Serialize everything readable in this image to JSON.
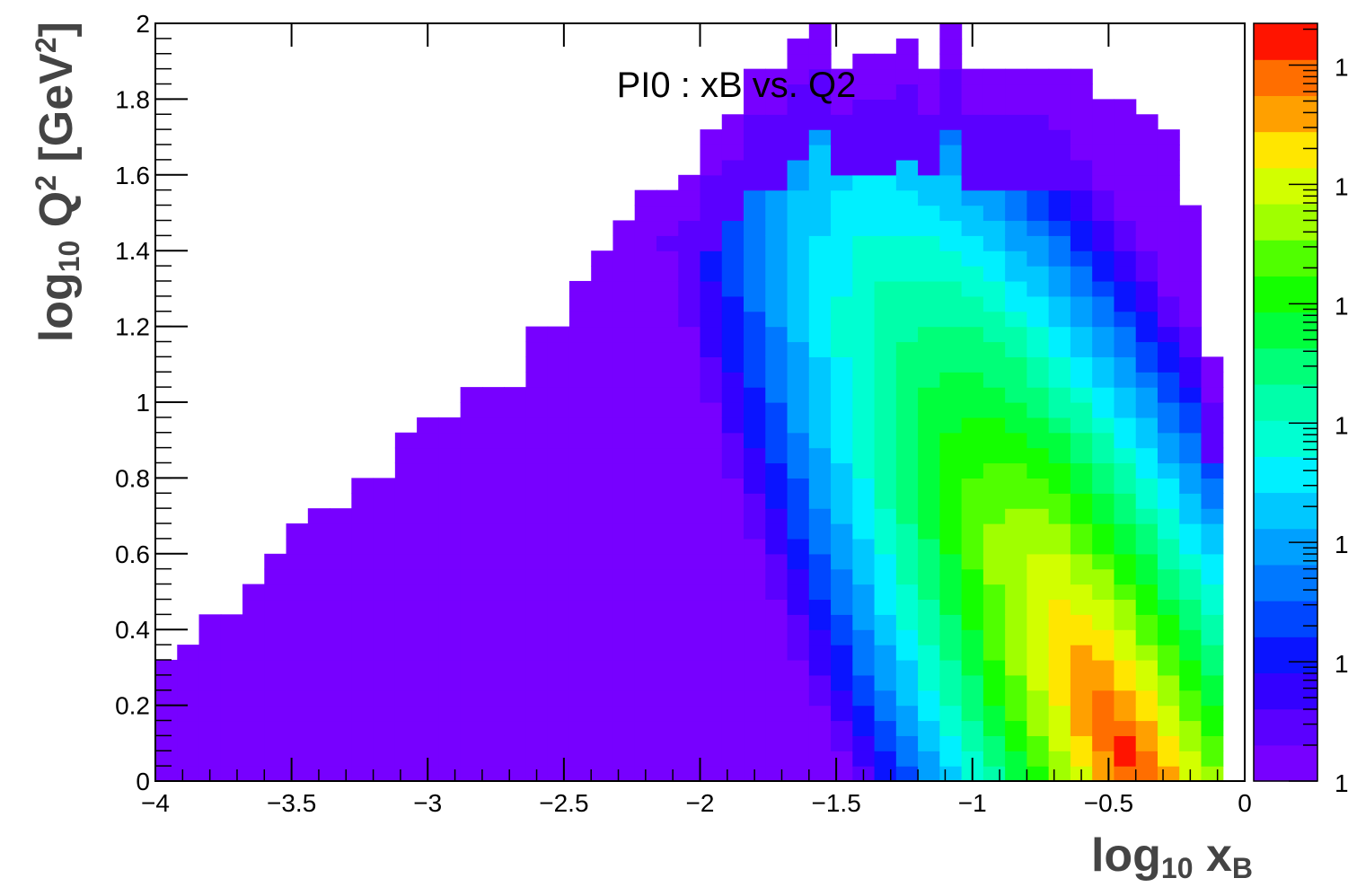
{
  "chart_data": {
    "type": "heatmap",
    "title": "PI0 : xB vs. Q2",
    "xlabel": "log10 xB",
    "ylabel": "log10 Q² [GeV²]",
    "xlabel_parts": {
      "base": "log",
      "sub": "10",
      "var": " x",
      "var_sub": "B"
    },
    "ylabel_parts": {
      "base": "log",
      "sub": "10",
      "var": " Q",
      "sup": "2",
      "unit_open": " [GeV",
      "unit_sup": "2",
      "unit_close": "]"
    },
    "xlim": [
      -4,
      0
    ],
    "ylim": [
      0,
      2
    ],
    "x_ticks": [
      -4,
      -3.5,
      -3,
      -2.5,
      -2,
      -1.5,
      -1,
      -0.5,
      0
    ],
    "x_tick_labels": [
      "−4",
      "−3.5",
      "−3",
      "−2.5",
      "−2",
      "−1.5",
      "−1",
      "−0.5",
      "0"
    ],
    "y_ticks": [
      0,
      0.2,
      0.4,
      0.6,
      0.8,
      1,
      1.2,
      1.4,
      1.6,
      1.8,
      2
    ],
    "y_tick_labels": [
      "0",
      "0.2",
      "0.4",
      "0.6",
      "0.8",
      "1",
      "1.2",
      "1.4",
      "1.6",
      "1.8",
      "2"
    ],
    "x_bins": 50,
    "y_bins": 50,
    "colz_scale": "log",
    "colz_labels": [
      "1",
      "1",
      "1",
      "1",
      "1",
      "1",
      "1"
    ],
    "palette": [
      "#7700ff",
      "#5a00ff",
      "#3300ff",
      "#0a14ff",
      "#0046ff",
      "#0078ff",
      "#00a0ff",
      "#00c8ff",
      "#00f0ff",
      "#00ffd2",
      "#00ffaa",
      "#00ff78",
      "#00ff3c",
      "#14ff00",
      "#50ff00",
      "#a0ff00",
      "#d2ff00",
      "#ffe600",
      "#ffa000",
      "#ff6e00",
      "#ff1400"
    ],
    "grid": false,
    "legend": "none",
    "density_model": {
      "description": "approximate density level per cell (0 = empty, 1..21 = palette index)",
      "upper_edge": [
        [
          -4.0,
          0.31
        ],
        [
          -3.9,
          0.36
        ],
        [
          -3.8,
          0.43
        ],
        [
          -3.7,
          0.52
        ],
        [
          -3.6,
          0.59
        ],
        [
          -3.5,
          0.67
        ],
        [
          -3.4,
          0.72
        ],
        [
          -3.3,
          0.79
        ],
        [
          -3.2,
          0.79
        ],
        [
          -3.1,
          0.91
        ],
        [
          -3.0,
          0.95
        ],
        [
          -2.9,
          1.04
        ],
        [
          -2.7,
          1.05
        ],
        [
          -2.6,
          1.2
        ],
        [
          -2.5,
          1.33
        ],
        [
          -2.4,
          1.4
        ],
        [
          -2.3,
          1.46
        ],
        [
          -2.2,
          1.54
        ],
        [
          -2.1,
          1.61
        ],
        [
          -2.0,
          1.7
        ],
        [
          -1.9,
          1.76
        ],
        [
          -1.8,
          1.88
        ],
        [
          -1.7,
          1.95
        ],
        [
          -1.6,
          2.0
        ],
        [
          -1.5,
          1.9
        ],
        [
          -1.4,
          1.92
        ],
        [
          -1.3,
          1.95
        ],
        [
          -1.2,
          1.9
        ],
        [
          -1.1,
          2.0
        ],
        [
          -1.0,
          1.88
        ],
        [
          -0.9,
          1.86
        ],
        [
          -0.8,
          1.88
        ],
        [
          -0.7,
          1.86
        ],
        [
          -0.6,
          1.79
        ],
        [
          -0.5,
          1.8
        ],
        [
          -0.4,
          1.77
        ],
        [
          -0.3,
          1.72
        ],
        [
          -0.2,
          1.53
        ],
        [
          -0.15,
          1.12
        ],
        [
          -0.1,
          1.12
        ],
        [
          -0.075,
          0.0
        ]
      ],
      "hot_spot": {
        "x": -0.42,
        "y": 0.05
      }
    }
  }
}
